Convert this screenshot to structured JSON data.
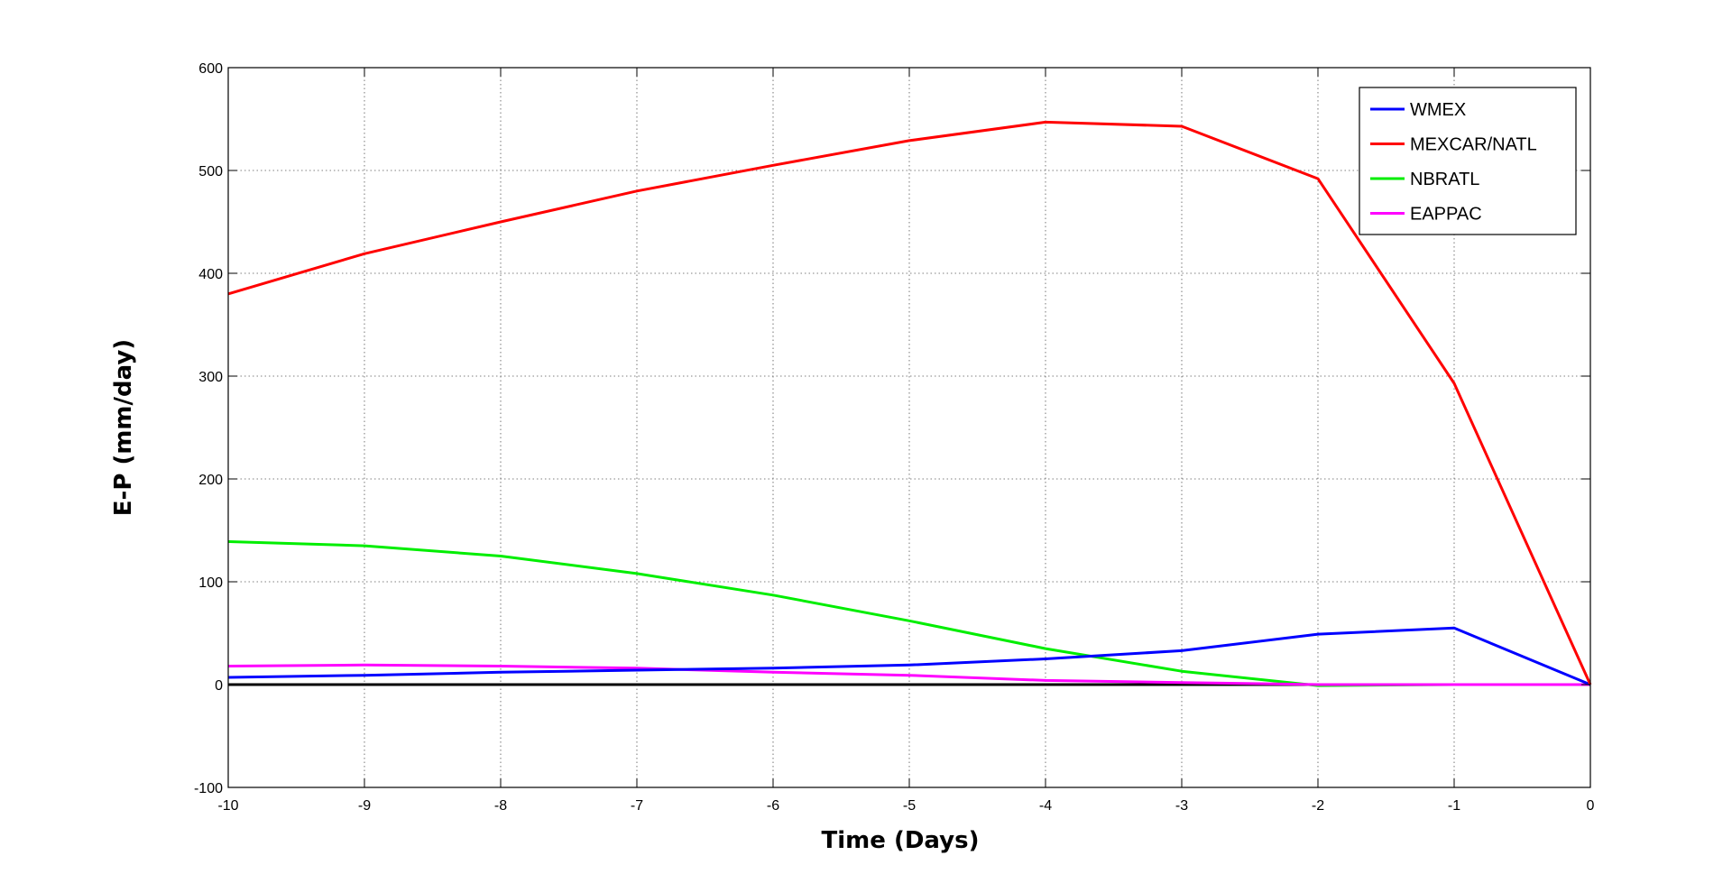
{
  "chart_data": {
    "type": "line",
    "title": "",
    "xlabel": "Time (Days)",
    "ylabel": "E-P (mm/day)",
    "xlim": [
      -10,
      0
    ],
    "ylim": [
      -100,
      600
    ],
    "xticks": [
      -10,
      -9,
      -8,
      -7,
      -6,
      -5,
      -4,
      -3,
      -2,
      -1,
      0
    ],
    "yticks": [
      -100,
      0,
      100,
      200,
      300,
      400,
      500,
      600
    ],
    "grid": true,
    "legend_position": "top-right",
    "zero_line": {
      "y": 0,
      "color": "#000000"
    },
    "x": [
      -10,
      -9,
      -8,
      -7,
      -6,
      -5,
      -4,
      -3,
      -2,
      -1,
      0
    ],
    "series": [
      {
        "name": "WMEX",
        "color": "#0000ff",
        "values": [
          7,
          9,
          12,
          14,
          16,
          19,
          25,
          33,
          49,
          55,
          0
        ]
      },
      {
        "name": "MEXCAR/NATL",
        "color": "#ff0000",
        "values": [
          380,
          419,
          450,
          480,
          505,
          529,
          547,
          543,
          492,
          293,
          0
        ]
      },
      {
        "name": "NBRATL",
        "color": "#00ee00",
        "values": [
          139,
          135,
          125,
          108,
          87,
          62,
          35,
          13,
          -1,
          0,
          0
        ]
      },
      {
        "name": "EAPPAC",
        "color": "#ff00ff",
        "values": [
          18,
          19,
          18,
          16,
          12,
          9,
          4,
          2,
          0,
          0,
          0
        ]
      }
    ]
  }
}
